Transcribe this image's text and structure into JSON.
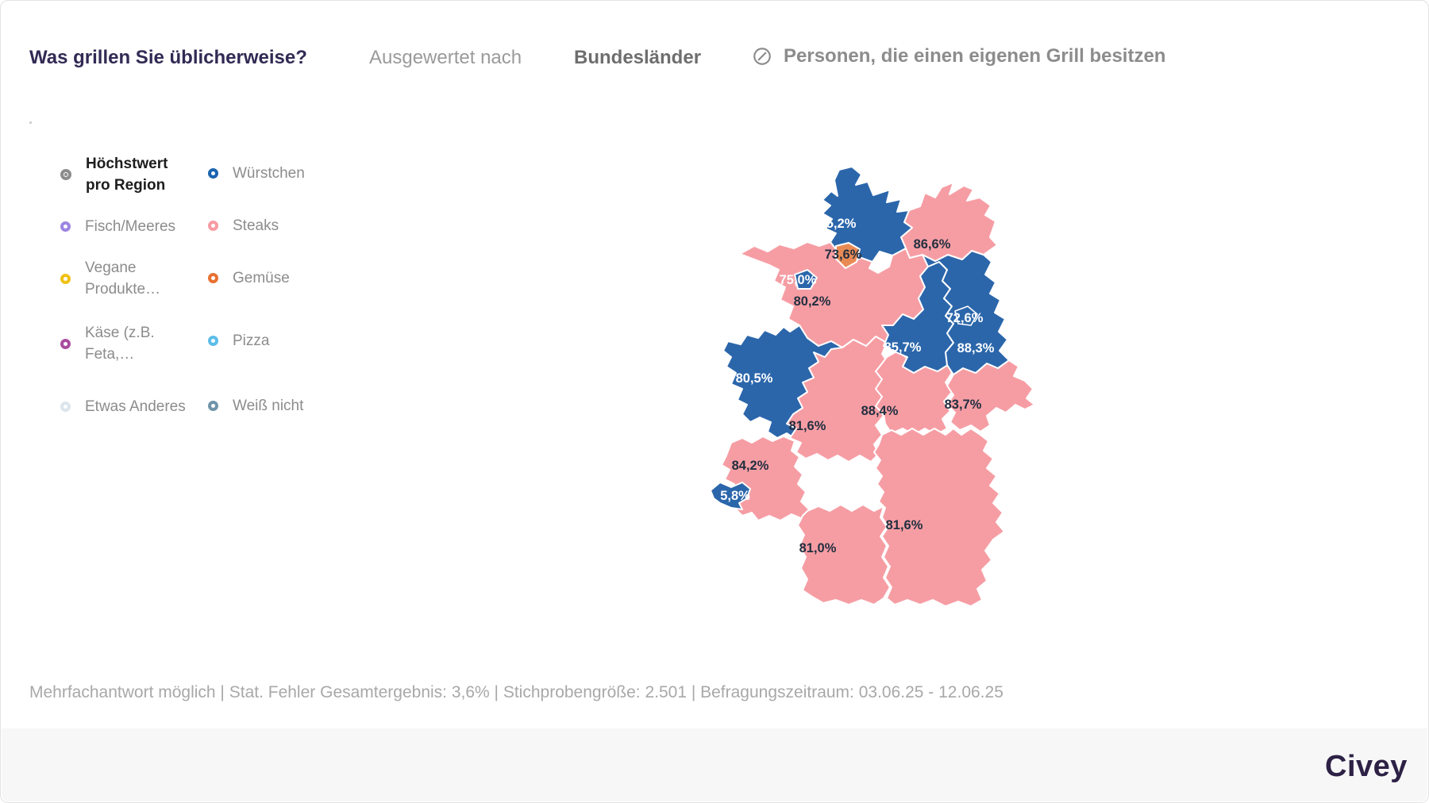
{
  "header": {
    "title": "Was grillen Sie üblicherweise?",
    "subtitle": "Ausgewertet nach",
    "dimension": "Bundesländer",
    "filter": "Personen, die einen eigenen Grill besitzen"
  },
  "legend": {
    "column1": [
      {
        "label": "Höchstwert pro Region",
        "color": "#8c8c8c",
        "type": "highlight"
      },
      {
        "label": "Fisch/Meeres",
        "color": "#9c86e2"
      },
      {
        "label": "Vegane Produkte…",
        "color": "#f1c117"
      },
      {
        "label": "Käse (z.B. Feta,…",
        "color": "#a94d9f"
      },
      {
        "label": "Etwas Anderes",
        "color": "#dbe5eb"
      }
    ],
    "column2": [
      {
        "label": "Würstchen",
        "color": "#1a64ae"
      },
      {
        "label": "Steaks",
        "color": "#f79ba3"
      },
      {
        "label": "Gemüse",
        "color": "#e97131"
      },
      {
        "label": "Pizza",
        "color": "#5cbde9"
      },
      {
        "label": "Weiß nicht",
        "color": "#7094a9"
      }
    ]
  },
  "chart_data": {
    "type": "choropleth",
    "title": "Was grillen Sie üblicherweise?",
    "region_level": "Bundesländer",
    "note": "Höchstwert pro Region; blau = Würstchen, rosa = Steaks, orange = Gemüse",
    "colors": {
      "blue": "#2b66ab",
      "pink": "#f69da4",
      "orange": "#e98a54"
    },
    "states": [
      {
        "id": "schleswig-holstein",
        "name": "Schleswig-Holstein",
        "label": "75,2%",
        "value": 75.2,
        "category": "Würstchen",
        "fill": "blue"
      },
      {
        "id": "hamburg",
        "name": "Hamburg",
        "label": "73,6%",
        "value": 73.6,
        "category": "Gemüse",
        "fill": "orange"
      },
      {
        "id": "mecklenburg-vorpommern",
        "name": "Mecklenburg-Vorpommern",
        "label": "86,6%",
        "value": 86.6,
        "category": "Steaks",
        "fill": "pink"
      },
      {
        "id": "bremen",
        "name": "Bremen",
        "label": "75,0%",
        "value": 75.0,
        "category": "Würstchen",
        "fill": "blue"
      },
      {
        "id": "niedersachsen",
        "name": "Niedersachsen",
        "label": "80,2%",
        "value": 80.2,
        "category": "Steaks",
        "fill": "pink"
      },
      {
        "id": "berlin",
        "name": "Berlin",
        "label": "72,6%",
        "value": 72.6,
        "category": "Würstchen",
        "fill": "blue"
      },
      {
        "id": "brandenburg",
        "name": "Brandenburg",
        "label": "88,3%",
        "value": 88.3,
        "category": "Würstchen",
        "fill": "blue"
      },
      {
        "id": "sachsen-anhalt",
        "name": "Sachsen-Anhalt",
        "label": "85,7%",
        "value": 85.7,
        "category": "Würstchen",
        "fill": "blue"
      },
      {
        "id": "nordrhein-westfalen",
        "name": "Nordrhein-Westfalen",
        "label": "80,5%",
        "value": 80.5,
        "category": "Würstchen",
        "fill": "blue"
      },
      {
        "id": "sachsen",
        "name": "Sachsen",
        "label": "83,7%",
        "value": 83.7,
        "category": "Steaks",
        "fill": "pink"
      },
      {
        "id": "thueringen",
        "name": "Thüringen",
        "label": "88,4%",
        "value": 88.4,
        "category": "Steaks",
        "fill": "pink"
      },
      {
        "id": "hessen",
        "name": "Hessen",
        "label": "81,6%",
        "value": 81.6,
        "category": "Steaks",
        "fill": "pink"
      },
      {
        "id": "rheinland-pfalz",
        "name": "Rheinland-Pfalz",
        "label": "84,2%",
        "value": 84.2,
        "category": "Steaks",
        "fill": "pink"
      },
      {
        "id": "saarland",
        "name": "Saarland",
        "label": "5,8%",
        "category": "Würstchen",
        "fill": "blue"
      },
      {
        "id": "baden-wuerttemberg",
        "name": "Baden-Württemberg",
        "label": "81,0%",
        "value": 81.0,
        "category": "Steaks",
        "fill": "pink"
      },
      {
        "id": "bayern",
        "name": "Bayern",
        "label": "81,6%",
        "value": 81.6,
        "category": "Steaks",
        "fill": "pink"
      }
    ]
  },
  "footer": {
    "disclaimer": "Mehrfachantwort möglich | Stat. Fehler Gesamtergebnis: 3,6% | Stichprobengröße: 2.501 | Befragungszeitraum: 03.06.25 - 12.06.25",
    "brand": "Civey"
  }
}
